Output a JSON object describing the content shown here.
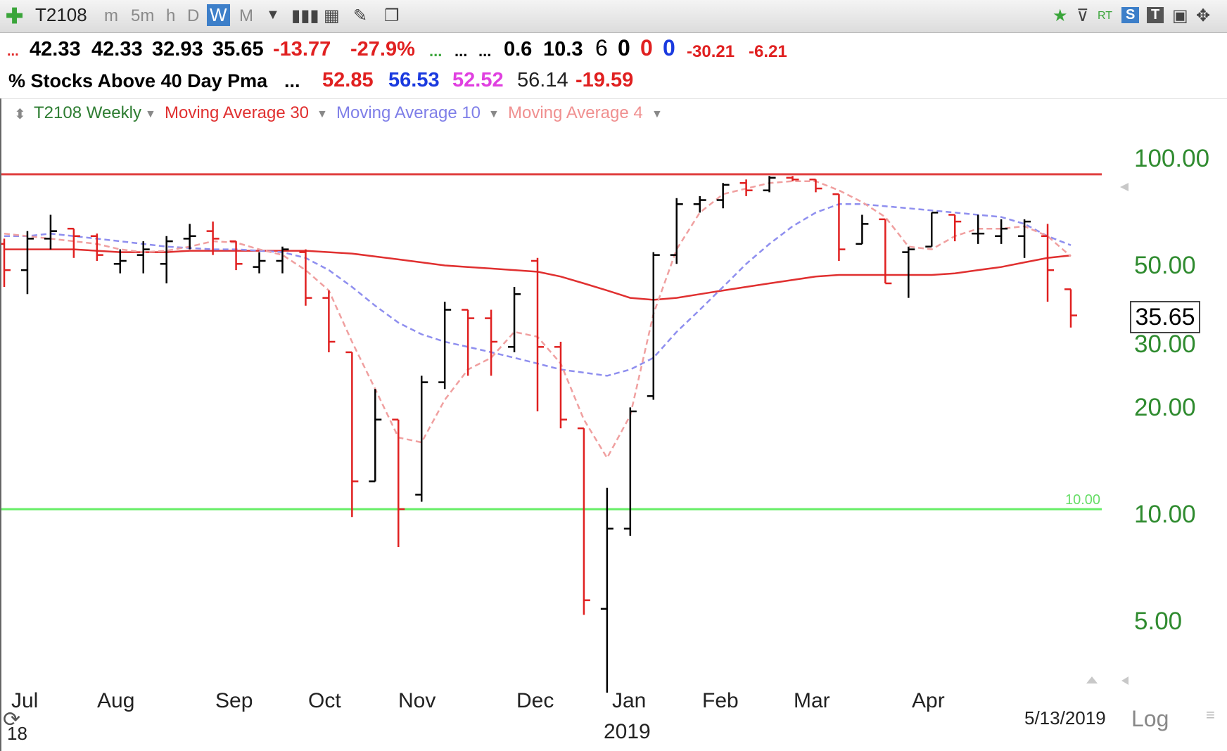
{
  "toolbar": {
    "symbol": "T2108",
    "timeframes": [
      "m",
      "5m",
      "h",
      "D",
      "W",
      "M"
    ],
    "selected_timeframe": "W",
    "rt_label": "RT",
    "s_label": "S",
    "t_label": "T"
  },
  "quote": {
    "dots": "...",
    "open": "42.33",
    "high": "42.33",
    "low": "32.93",
    "close": "35.65",
    "change": "-13.77",
    "change_pct": "-27.9%",
    "dots_green": "...",
    "dots_a": "...",
    "dots_b": "...",
    "v1": "0.6",
    "v2": "10.3",
    "c1": "6",
    "c2": "0",
    "c3": "0",
    "c4": "0",
    "n1": "-30.21",
    "n2": "-6.21"
  },
  "study_row": {
    "name": "% Stocks Above 40 Day Pma",
    "dots": "...",
    "ma30": "52.85",
    "ma10": "56.53",
    "ma4": "52.52",
    "value": "56.14",
    "change": "-19.59"
  },
  "legend": {
    "series": "T2108 Weekly",
    "ma30": "Moving Average 30",
    "ma10": "Moving Average 10",
    "ma4": "Moving Average 4"
  },
  "y_axis": {
    "labels": [
      "100.00",
      "50.00",
      "30.00",
      "20.00",
      "10.00",
      "5.00"
    ],
    "current_price": "35.65",
    "line_label_10": "10.00",
    "scale_label": "Log"
  },
  "x_axis": {
    "months": [
      "Jul",
      "Aug",
      "Sep",
      "Oct",
      "Nov",
      "Dec",
      "Jan",
      "Feb",
      "Mar",
      "Apr"
    ],
    "year_left": "18",
    "year_center": "2019",
    "end_date": "5/13/2019"
  },
  "colors": {
    "up_bar": "#000000",
    "down_bar": "#e02020",
    "ma30": "#e03030",
    "ma10": "#8f8fef",
    "ma4": "#f0a0a0",
    "line_high": "#e04040",
    "line_low": "#66ee66",
    "axis_text": "#2f8b2f",
    "selected_timeframe_bg": "#3d7fc9"
  },
  "chart_data": {
    "type": "ohlc",
    "scale": "log",
    "ylim": [
      2.8,
      135
    ],
    "horizontal_lines": [
      90,
      10
    ],
    "ohlc": [
      {
        "o": 57,
        "h": 59,
        "l": 43,
        "c": 48
      },
      {
        "o": 48,
        "h": 62,
        "l": 41,
        "c": 59
      },
      {
        "o": 59,
        "h": 69,
        "l": 55,
        "c": 62
      },
      {
        "o": 63,
        "h": 63,
        "l": 52,
        "c": 60
      },
      {
        "o": 60,
        "h": 61,
        "l": 51,
        "c": 53
      },
      {
        "o": 50,
        "h": 55,
        "l": 47,
        "c": 51
      },
      {
        "o": 53,
        "h": 58,
        "l": 47,
        "c": 55
      },
      {
        "o": 50,
        "h": 60,
        "l": 44,
        "c": 58
      },
      {
        "o": 59,
        "h": 65,
        "l": 55,
        "c": 60
      },
      {
        "o": 62,
        "h": 66,
        "l": 53,
        "c": 59
      },
      {
        "o": 58,
        "h": 58,
        "l": 48,
        "c": 50
      },
      {
        "o": 49,
        "h": 54,
        "l": 47,
        "c": 51
      },
      {
        "o": 51,
        "h": 56,
        "l": 47,
        "c": 55
      },
      {
        "o": 54,
        "h": 55,
        "l": 38,
        "c": 40
      },
      {
        "o": 40,
        "h": 42,
        "l": 28,
        "c": 30
      },
      {
        "o": 28,
        "h": 28,
        "l": 9.5,
        "c": 12
      },
      {
        "o": 12,
        "h": 22,
        "l": 12,
        "c": 18
      },
      {
        "o": 18,
        "h": 18,
        "l": 7.8,
        "c": 10
      },
      {
        "o": 11,
        "h": 24,
        "l": 10.5,
        "c": 23
      },
      {
        "o": 23,
        "h": 39,
        "l": 22,
        "c": 37
      },
      {
        "o": 37,
        "h": 37,
        "l": 24,
        "c": 35
      },
      {
        "o": 35,
        "h": 37,
        "l": 24,
        "c": 30
      },
      {
        "o": 29,
        "h": 43,
        "l": 28,
        "c": 41
      },
      {
        "o": 51,
        "h": 52,
        "l": 19,
        "c": 29
      },
      {
        "o": 29,
        "h": 30,
        "l": 17,
        "c": 18
      },
      {
        "o": 17,
        "h": 17,
        "l": 5.0,
        "c": 5.5
      },
      {
        "o": 5.2,
        "h": 11.5,
        "l": 3.0,
        "c": 8.8
      },
      {
        "o": 8.8,
        "h": 19.5,
        "l": 8.4,
        "c": 19.0
      },
      {
        "o": 21,
        "h": 54,
        "l": 20.5,
        "c": 53
      },
      {
        "o": 53,
        "h": 77,
        "l": 50,
        "c": 74
      },
      {
        "o": 74,
        "h": 78,
        "l": 70,
        "c": 76
      },
      {
        "o": 76,
        "h": 85,
        "l": 72,
        "c": 84
      },
      {
        "o": 85,
        "h": 87,
        "l": 78,
        "c": 81
      },
      {
        "o": 81,
        "h": 89,
        "l": 80,
        "c": 88
      },
      {
        "o": 88,
        "h": 89,
        "l": 86,
        "c": 87
      },
      {
        "o": 87,
        "h": 87,
        "l": 80,
        "c": 82
      },
      {
        "o": 79,
        "h": 79,
        "l": 51,
        "c": 55
      },
      {
        "o": 57,
        "h": 69,
        "l": 57,
        "c": 65
      },
      {
        "o": 67,
        "h": 67,
        "l": 44,
        "c": 44
      },
      {
        "o": 54,
        "h": 56,
        "l": 40,
        "c": 55
      },
      {
        "o": 56,
        "h": 70,
        "l": 56,
        "c": 70
      },
      {
        "o": 69,
        "h": 69,
        "l": 58,
        "c": 66
      },
      {
        "o": 61,
        "h": 69,
        "l": 57,
        "c": 61
      },
      {
        "o": 60,
        "h": 67,
        "l": 57,
        "c": 63
      },
      {
        "o": 60,
        "h": 67,
        "l": 52,
        "c": 66
      },
      {
        "o": 60,
        "h": 65,
        "l": 39,
        "c": 48
      },
      {
        "o": 42.33,
        "h": 42.33,
        "l": 32.93,
        "c": 35.65
      }
    ],
    "ma30": [
      55,
      55,
      55,
      55,
      54.5,
      54,
      54,
      54,
      54.5,
      54.5,
      54.5,
      54.5,
      54.5,
      54.5,
      54,
      53.5,
      52.5,
      51.5,
      50.5,
      49.5,
      49,
      48.5,
      48,
      47.5,
      46,
      44,
      42,
      40,
      39.5,
      40,
      41,
      42,
      43,
      44,
      45,
      46,
      46.5,
      46.5,
      46.5,
      46.5,
      46.5,
      47,
      48,
      49,
      50.5,
      52,
      52.85
    ],
    "ma10": [
      60,
      60,
      61,
      60,
      59,
      58,
      57,
      56,
      55.5,
      55,
      55,
      54.5,
      54,
      52,
      48,
      43,
      38,
      34,
      31.5,
      30,
      29,
      28,
      27,
      26,
      25,
      24.5,
      24,
      25,
      27,
      32,
      37,
      43,
      50,
      57,
      64,
      70,
      74,
      74,
      73,
      72,
      71,
      70,
      69,
      68,
      65,
      60,
      56.53
    ],
    "ma4": [
      61,
      60,
      59,
      58,
      57,
      55,
      54,
      54.5,
      56,
      58,
      57.5,
      55,
      53,
      48,
      42,
      30,
      22,
      16,
      15.5,
      20.5,
      25,
      27,
      32,
      31,
      26,
      18,
      14,
      18.5,
      36,
      55,
      70,
      79,
      82,
      85,
      86,
      86,
      81,
      75,
      68,
      56,
      55,
      60,
      63,
      63,
      64,
      60,
      52.52
    ]
  }
}
